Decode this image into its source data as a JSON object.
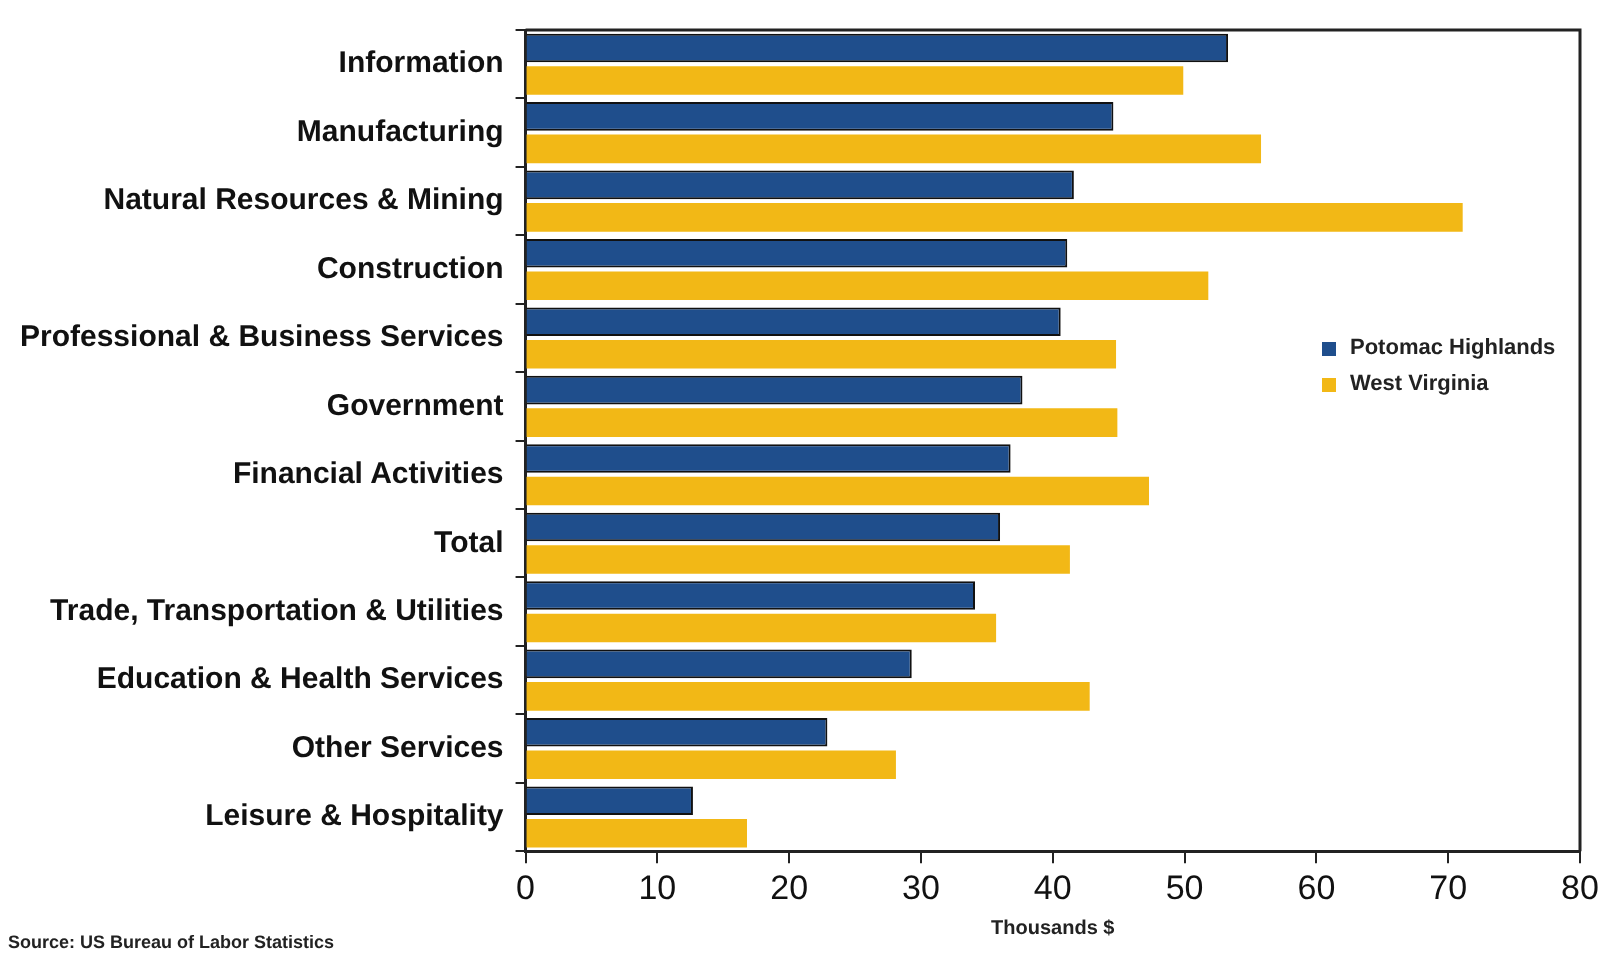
{
  "chart_data": {
    "type": "bar",
    "orientation": "horizontal",
    "xlabel": "Thousands $",
    "annotations": [
      "Source: US Bureau of Labor Statistics"
    ],
    "categories": [
      "Information",
      "Manufacturing",
      "Natural Resources & Mining",
      "Construction",
      "Professional & Business Services",
      "Government",
      "Financial Activities",
      "Total",
      "Trade, Transportation & Utilities",
      "Education & Health Services",
      "Other Services",
      "Leisure & Hospitality"
    ],
    "series": [
      {
        "name": "Potomac Highlands",
        "color": "#1f4e8c",
        "values": [
          53.3,
          44.6,
          41.6,
          41.1,
          40.6,
          37.7,
          36.8,
          36.0,
          34.1,
          29.3,
          22.9,
          12.7
        ]
      },
      {
        "name": "West Virginia",
        "color": "#f2b816",
        "values": [
          49.9,
          55.8,
          71.1,
          51.8,
          44.8,
          44.9,
          47.3,
          41.3,
          35.7,
          42.8,
          28.1,
          16.8
        ]
      }
    ],
    "xlim": [
      0,
      80
    ],
    "xticks": [
      0,
      10,
      20,
      30,
      40,
      50,
      60,
      70,
      80
    ],
    "grid": false,
    "legend": "right"
  }
}
